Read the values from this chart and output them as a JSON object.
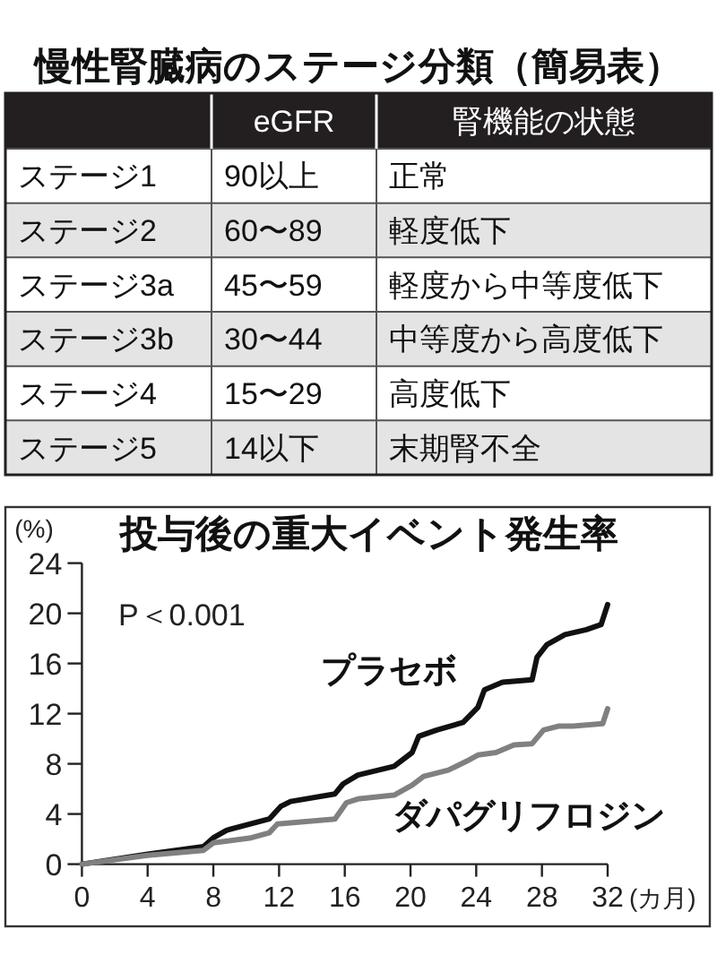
{
  "chart_data": [
    {
      "type": "other",
      "title": "慢性腎臓病のステージ分類（簡易表）",
      "categories": [
        "eGFR",
        "腎機能の状態"
      ],
      "y_categories": [
        "ステージ1",
        "ステージ2",
        "ステージ3a",
        "ステージ3b",
        "ステージ4",
        "ステージ5"
      ],
      "cell_labels": [
        [
          "90以上",
          "正常"
        ],
        [
          "60〜89",
          "軽度低下"
        ],
        [
          "45〜59",
          "軽度から中等度低下"
        ],
        [
          "30〜44",
          "中等度から高度低下"
        ],
        [
          "15〜29",
          "高度低下"
        ],
        [
          "14以下",
          "末期腎不全"
        ]
      ]
    },
    {
      "type": "line",
      "title": "投与後の重大イベント発生率",
      "ylabel": "(%)",
      "xlabel": "(カ月)",
      "xlim": [
        0,
        32
      ],
      "xticks": [
        0,
        4,
        8,
        12,
        16,
        20,
        24,
        28,
        32
      ],
      "ylim": [
        0,
        24
      ],
      "yticks": [
        0,
        4,
        8,
        12,
        16,
        20,
        24
      ],
      "annotations": [
        "P＜0.001"
      ],
      "series": [
        {
          "name": "プラセボ",
          "color": "#111111",
          "x": [
            0,
            4,
            7.4,
            8,
            8.8,
            11.4,
            12.1,
            12.7,
            15.4,
            15.9,
            16.8,
            19,
            20.1,
            20.5,
            21.6,
            23.2,
            24.1,
            24.5,
            25.6,
            27.4,
            27.7,
            28.3,
            29.4,
            30.7,
            31.6,
            32
          ],
          "values": [
            0,
            0.8,
            1.4,
            2.1,
            2.7,
            3.6,
            4.6,
            5,
            5.6,
            6.4,
            7.1,
            7.8,
            8.9,
            10.2,
            10.7,
            11.3,
            12.5,
            13.9,
            14.5,
            14.7,
            16.5,
            17.5,
            18.3,
            18.7,
            19.1,
            20.7
          ]
        },
        {
          "name": "ダパグリフロジン",
          "color": "#808080",
          "x": [
            0,
            4,
            7.4,
            8,
            10.3,
            11.4,
            11.9,
            15.4,
            16.1,
            16.8,
            19,
            20.1,
            20.8,
            22.3,
            23.4,
            24.1,
            25.2,
            26.3,
            27.4,
            28.1,
            29,
            29.9,
            31.7,
            32
          ],
          "values": [
            0,
            0.7,
            1.1,
            1.7,
            2.1,
            2.5,
            3.2,
            3.6,
            4.9,
            5.2,
            5.5,
            6.3,
            7,
            7.5,
            8.2,
            8.7,
            8.9,
            9.5,
            9.6,
            10.7,
            11,
            11,
            11.2,
            12.4
          ]
        }
      ]
    }
  ]
}
